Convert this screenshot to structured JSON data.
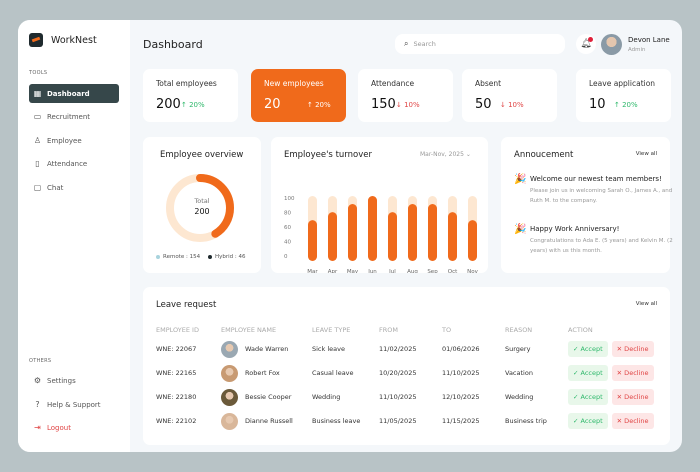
{
  "app": {
    "name": "WorkNest"
  },
  "sidebar": {
    "tools_label": "TOOLS",
    "items": [
      {
        "label": "Dashboard",
        "icon": "grid-icon",
        "active": true
      },
      {
        "label": "Recruitment",
        "icon": "id-card-icon"
      },
      {
        "label": "Employee",
        "icon": "user-check-icon"
      },
      {
        "label": "Attendance",
        "icon": "book-icon"
      },
      {
        "label": "Chat",
        "icon": "chat-icon"
      }
    ],
    "others_label": "OTHERS",
    "others": [
      {
        "label": "Settings",
        "icon": "gear-icon"
      },
      {
        "label": "Help & Support",
        "icon": "help-icon"
      },
      {
        "label": "Logout",
        "icon": "logout-icon"
      }
    ]
  },
  "header": {
    "title": "Dashboard",
    "search_placeholder": "Search",
    "user": {
      "name": "Devon Lane",
      "role": "Admin"
    }
  },
  "stats": [
    {
      "label": "Total employees",
      "value": "200",
      "change": "↑ 20%",
      "trend": "up"
    },
    {
      "label": "New employees",
      "value": "20",
      "change": "↑ 20%",
      "trend": "up",
      "highlight": true
    },
    {
      "label": "Attendance",
      "value": "150",
      "change": "↓ 10%",
      "trend": "down"
    },
    {
      "label": "Absent",
      "value": "50",
      "change": "↓ 10%",
      "trend": "down"
    },
    {
      "label": "Leave application",
      "value": "10",
      "change": "↑ 20%",
      "trend": "up"
    }
  ],
  "overview": {
    "title": "Employee overview",
    "center_label": "Total",
    "center_value": "200",
    "remote": "Remote : 154",
    "hybrid": "Hybrid : 46"
  },
  "chart_data": {
    "type": "bar",
    "title": "Employee's turnover",
    "period": "Mar-Nov, 2025",
    "categories": [
      "Mar",
      "Apr",
      "May",
      "Jun",
      "Jul",
      "Aug",
      "Sep",
      "Oct",
      "Nov"
    ],
    "values": [
      40,
      60,
      80,
      100,
      60,
      80,
      80,
      60,
      40
    ],
    "yticks": [
      "100",
      "80",
      "60",
      "40",
      "0"
    ],
    "ylim": [
      0,
      100
    ],
    "colors": {
      "bar": "#f06a1b",
      "track": "#fde7d1"
    }
  },
  "announcement": {
    "title": "Annoucement",
    "view_all": "View all",
    "items": [
      {
        "title": "Welcome our newest team members!",
        "body": "Please join us in welcoming Sarah O., James A., and Ruth M. to the company."
      },
      {
        "title": "Happy Work Anniversary!",
        "body": "Congratulations to Ada E. (5 years) and Kelvin M. (2 years) with us this month."
      }
    ]
  },
  "leave": {
    "title": "Leave request",
    "view_all": "View all",
    "columns": [
      "EMPLOYEE ID",
      "EMPLOYEE NAME",
      "LEAVE TYPE",
      "FROM",
      "TO",
      "REASON",
      "ACTION"
    ],
    "accept": "✓ Accept",
    "decline": "✕ Decline",
    "rows": [
      {
        "id": "WNE: 22067",
        "name": "Wade Warren",
        "type": "Sick leave",
        "from": "11/02/2025",
        "to": "01/06/2026",
        "reason": "Surgery"
      },
      {
        "id": "WNE: 22165",
        "name": "Robert Fox",
        "type": "Casual leave",
        "from": "10/20/2025",
        "to": "11/10/2025",
        "reason": "Vacation"
      },
      {
        "id": "WNE: 22180",
        "name": "Bessie Cooper",
        "type": "Wedding",
        "from": "11/10/2025",
        "to": "12/10/2025",
        "reason": "Wedding"
      },
      {
        "id": "WNE: 22102",
        "name": "Dianne Russell",
        "type": "Business leave",
        "from": "11/05/2025",
        "to": "11/15/2025",
        "reason": "Business trip"
      }
    ]
  }
}
